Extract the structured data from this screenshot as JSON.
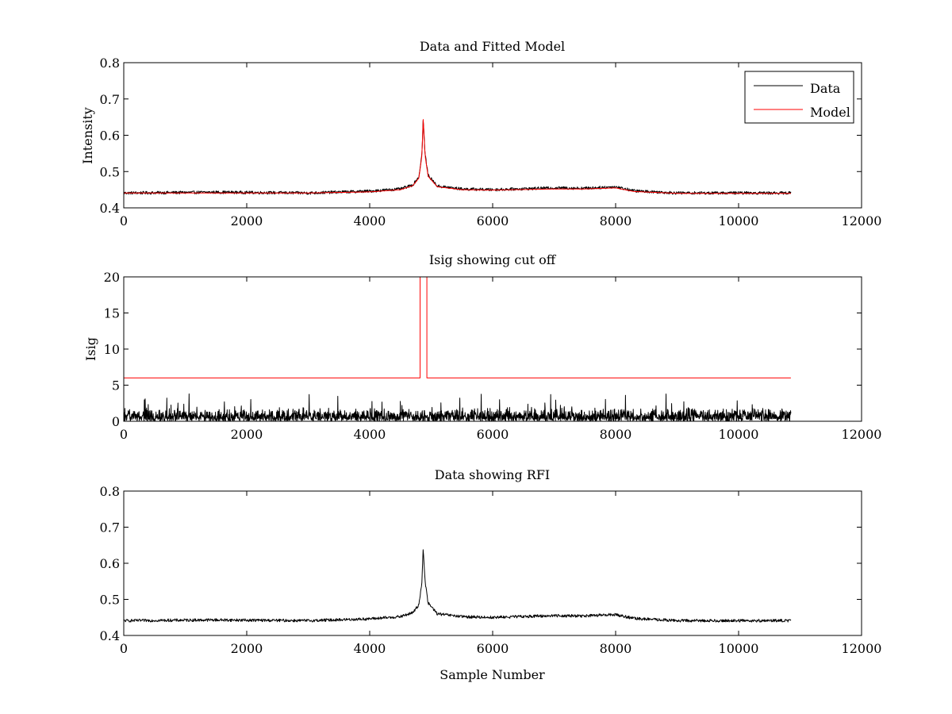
{
  "chart_data": [
    {
      "type": "line",
      "title": "Data and Fitted Model",
      "xlabel": "",
      "ylabel": "Intensity",
      "xlim": [
        0,
        12000
      ],
      "ylim": [
        0.4,
        0.8
      ],
      "xticks": [
        0,
        2000,
        4000,
        6000,
        8000,
        10000,
        12000
      ],
      "xtick_labels": [
        "0",
        "2000",
        "4000",
        "6000",
        "8000",
        "10000",
        "12000"
      ],
      "yticks": [
        0.4,
        0.5,
        0.6,
        0.7,
        0.8
      ],
      "ytick_labels": [
        "0.4",
        "0.5",
        "0.6",
        "0.7",
        "0.8"
      ],
      "grid": false,
      "legend_position": "top-right",
      "series": [
        {
          "name": "Data",
          "color": "#000000",
          "x_end": 10850,
          "baseline_points": [
            [
              0,
              0.441
            ],
            [
              1500,
              0.443
            ],
            [
              3000,
              0.441
            ],
            [
              4000,
              0.446
            ],
            [
              4500,
              0.452
            ],
            [
              4700,
              0.463
            ],
            [
              4800,
              0.485
            ],
            [
              4850,
              0.55
            ],
            [
              4870,
              0.645
            ],
            [
              4900,
              0.55
            ],
            [
              4950,
              0.49
            ],
            [
              5100,
              0.46
            ],
            [
              5500,
              0.452
            ],
            [
              6000,
              0.45
            ],
            [
              7000,
              0.455
            ],
            [
              7500,
              0.454
            ],
            [
              8000,
              0.458
            ],
            [
              8300,
              0.447
            ],
            [
              9000,
              0.441
            ],
            [
              10850,
              0.441
            ]
          ],
          "noise_amplitude": 0.004
        },
        {
          "name": "Model",
          "color": "#ff0000",
          "x_end": 10850,
          "points": [
            [
              0,
              0.441
            ],
            [
              1500,
              0.441
            ],
            [
              3000,
              0.441
            ],
            [
              4000,
              0.444
            ],
            [
              4500,
              0.45
            ],
            [
              4700,
              0.461
            ],
            [
              4800,
              0.482
            ],
            [
              4850,
              0.545
            ],
            [
              4870,
              0.645
            ],
            [
              4900,
              0.545
            ],
            [
              4950,
              0.487
            ],
            [
              5100,
              0.458
            ],
            [
              5500,
              0.45
            ],
            [
              6000,
              0.449
            ],
            [
              7000,
              0.452
            ],
            [
              7500,
              0.452
            ],
            [
              8000,
              0.455
            ],
            [
              8300,
              0.445
            ],
            [
              9000,
              0.44
            ],
            [
              10850,
              0.44
            ]
          ]
        }
      ]
    },
    {
      "type": "line",
      "title": "Isig showing cut off",
      "xlabel": "",
      "ylabel": "Isig",
      "xlim": [
        0,
        12000
      ],
      "ylim": [
        0,
        20
      ],
      "xticks": [
        0,
        2000,
        4000,
        6000,
        8000,
        10000,
        12000
      ],
      "xtick_labels": [
        "0",
        "2000",
        "4000",
        "6000",
        "8000",
        "10000",
        "12000"
      ],
      "yticks": [
        0,
        5,
        10,
        15,
        20
      ],
      "ytick_labels": [
        "0",
        "5",
        "10",
        "15",
        "20"
      ],
      "grid": false,
      "series": [
        {
          "name": "Isig",
          "color": "#000000",
          "x_end": 10850,
          "typical_max": 2.0,
          "peak_max": 3.8
        },
        {
          "name": "Cut off",
          "color": "#ff0000",
          "points": [
            [
              0,
              6
            ],
            [
              4820,
              6
            ],
            [
              4820,
              20
            ],
            [
              4930,
              20
            ],
            [
              4930,
              6
            ],
            [
              10850,
              6
            ]
          ]
        }
      ]
    },
    {
      "type": "line",
      "title": "Data showing RFI",
      "xlabel": "Sample Number",
      "ylabel": "",
      "xlim": [
        0,
        12000
      ],
      "ylim": [
        0.4,
        0.8
      ],
      "xticks": [
        0,
        2000,
        4000,
        6000,
        8000,
        10000,
        12000
      ],
      "xtick_labels": [
        "0",
        "2000",
        "4000",
        "6000",
        "8000",
        "10000",
        "12000"
      ],
      "yticks": [
        0.4,
        0.5,
        0.6,
        0.7,
        0.8
      ],
      "ytick_labels": [
        "0.4",
        "0.5",
        "0.6",
        "0.7",
        "0.8"
      ],
      "grid": false,
      "series": [
        {
          "name": "Data",
          "color": "#000000",
          "x_end": 10850,
          "baseline_points": [
            [
              0,
              0.441
            ],
            [
              1500,
              0.443
            ],
            [
              3000,
              0.441
            ],
            [
              4000,
              0.446
            ],
            [
              4500,
              0.452
            ],
            [
              4700,
              0.463
            ],
            [
              4800,
              0.485
            ],
            [
              4850,
              0.55
            ],
            [
              4870,
              0.645
            ],
            [
              4900,
              0.55
            ],
            [
              4950,
              0.49
            ],
            [
              5100,
              0.46
            ],
            [
              5500,
              0.452
            ],
            [
              6000,
              0.45
            ],
            [
              7000,
              0.455
            ],
            [
              7500,
              0.454
            ],
            [
              8000,
              0.458
            ],
            [
              8300,
              0.447
            ],
            [
              9000,
              0.441
            ],
            [
              10850,
              0.441
            ]
          ],
          "noise_amplitude": 0.004
        }
      ]
    }
  ]
}
